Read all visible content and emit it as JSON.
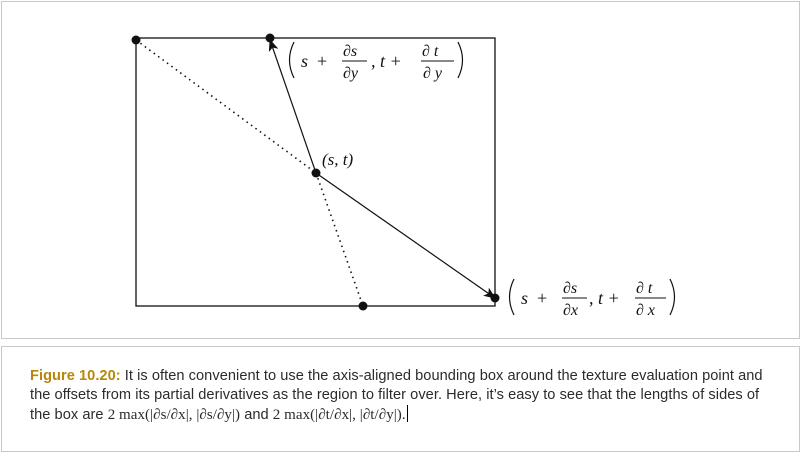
{
  "diagram": {
    "label_center": "(s, t)",
    "label_top": {
      "s": "s",
      "plus1": "+",
      "num1": "∂s",
      "den1": "∂y",
      "comma": ", t +",
      "num2": "∂ t",
      "den2": "∂ y"
    },
    "label_right": {
      "s": "s",
      "plus1": "+",
      "num1": "∂s",
      "den1": "∂x",
      "comma": ", t +",
      "num2": "∂ t",
      "den2": "∂ x"
    }
  },
  "caption": {
    "figure_label": "Figure 10.20:",
    "text_part1": "It is often convenient to use the axis-aligned bounding box around the texture evaluation point and the offsets from its partial derivatives as the region to filter over. Here, it’s easy to see that the lengths of sides of the box are",
    "math1": "2 max(|∂s/∂x|, |∂s/∂y|)",
    "text_part2": "and",
    "math2": "2 max(|∂t/∂x|, |∂t/∂y|)."
  }
}
